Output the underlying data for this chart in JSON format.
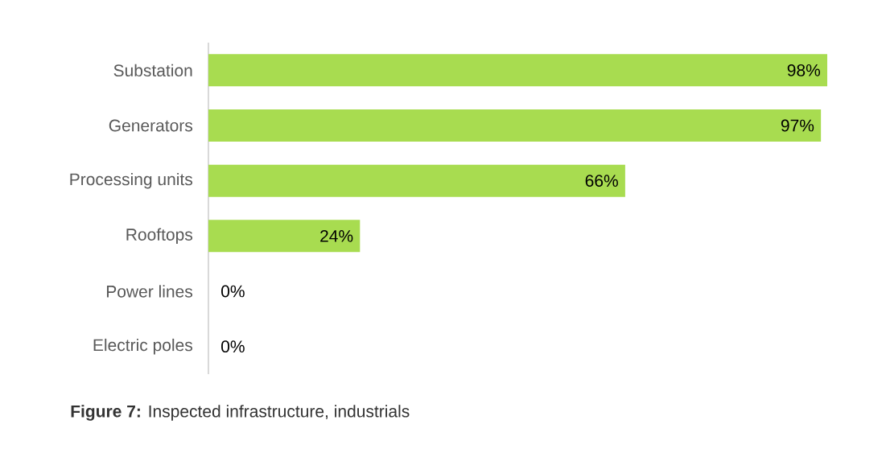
{
  "chart_data": {
    "type": "bar",
    "orientation": "horizontal",
    "categories": [
      "Substation",
      "Generators",
      "Processing units",
      "Rooftops",
      "Power lines",
      "Electric poles"
    ],
    "values": [
      98,
      97,
      66,
      24,
      0,
      0
    ],
    "value_labels": [
      "98%",
      "97%",
      "66%",
      "24%",
      "0%",
      "0%"
    ],
    "color": "#a8dc50",
    "annotations": [
      "**Figure 7:** Inspected infrastructure, industrials"
    ]
  }
}
